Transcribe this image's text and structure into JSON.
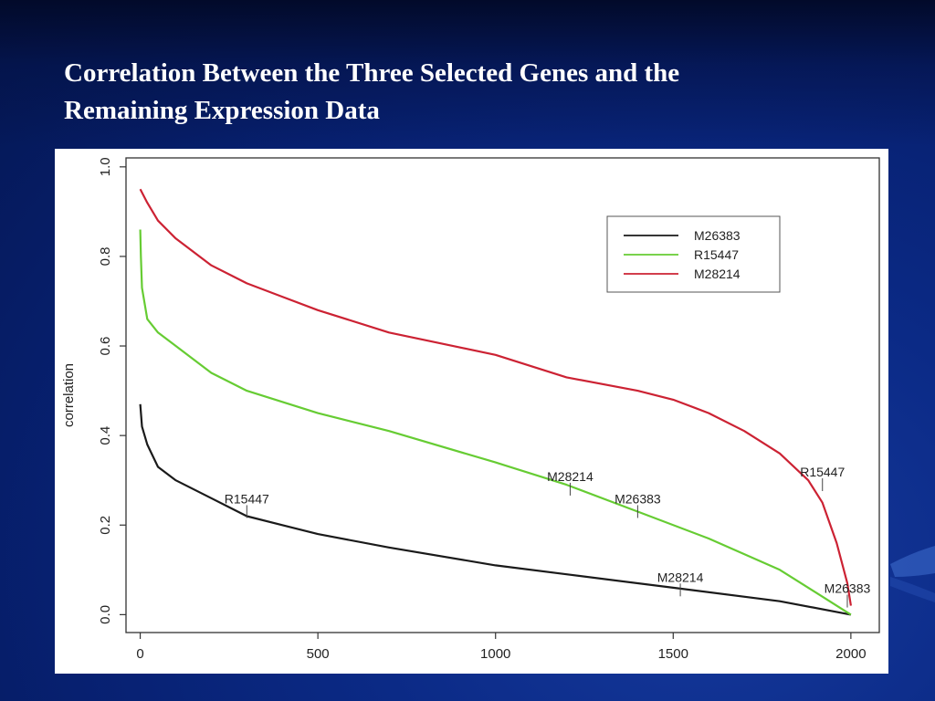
{
  "slide": {
    "title_line1": "Correlation Between the Three Selected Genes and the",
    "title_line2": "Remaining Expression Data"
  },
  "chart_data": {
    "type": "line",
    "xlabel": "",
    "ylabel": "correlation",
    "xlim": [
      -40,
      2080
    ],
    "ylim": [
      -0.04,
      1.02
    ],
    "xticks": [
      0,
      500,
      1000,
      1500,
      2000
    ],
    "yticks": [
      0.0,
      0.2,
      0.4,
      0.6,
      0.8,
      1.0
    ],
    "ytick_labels": [
      "0.0",
      "0.2",
      "0.4",
      "0.6",
      "0.8",
      "1.0"
    ],
    "grid": false,
    "legend_position": "top-right",
    "series": [
      {
        "name": "M26383",
        "color": "#1a1a1a",
        "x": [
          0,
          5,
          20,
          50,
          100,
          200,
          300,
          400,
          500,
          700,
          1000,
          1200,
          1500,
          1800,
          2000
        ],
        "y": [
          0.47,
          0.42,
          0.38,
          0.33,
          0.3,
          0.26,
          0.22,
          0.2,
          0.18,
          0.15,
          0.11,
          0.09,
          0.06,
          0.03,
          0.0
        ]
      },
      {
        "name": "R15447",
        "color": "#66cc33",
        "x": [
          0,
          2,
          5,
          20,
          50,
          100,
          200,
          300,
          500,
          700,
          1000,
          1200,
          1400,
          1600,
          1800,
          1900,
          2000
        ],
        "y": [
          0.86,
          0.8,
          0.73,
          0.66,
          0.63,
          0.6,
          0.54,
          0.5,
          0.45,
          0.41,
          0.34,
          0.29,
          0.23,
          0.17,
          0.1,
          0.05,
          0.0
        ]
      },
      {
        "name": "M28214",
        "color": "#cc2233",
        "x": [
          0,
          20,
          50,
          100,
          200,
          300,
          400,
          500,
          700,
          1000,
          1200,
          1400,
          1500,
          1600,
          1700,
          1800,
          1880,
          1920,
          1960,
          1990,
          2000
        ],
        "y": [
          0.95,
          0.92,
          0.88,
          0.84,
          0.78,
          0.74,
          0.71,
          0.68,
          0.63,
          0.58,
          0.53,
          0.5,
          0.48,
          0.45,
          0.41,
          0.36,
          0.3,
          0.25,
          0.16,
          0.07,
          0.02
        ]
      }
    ],
    "annotations": [
      {
        "text": "R15447",
        "x": 300,
        "y": 0.22
      },
      {
        "text": "M28214",
        "x": 1210,
        "y": 0.27
      },
      {
        "text": "M26383",
        "x": 1400,
        "y": 0.22
      },
      {
        "text": "M28214",
        "x": 1520,
        "y": 0.045
      },
      {
        "text": "R15447",
        "x": 1920,
        "y": 0.28
      },
      {
        "text": "M26383",
        "x": 1990,
        "y": 0.02
      }
    ]
  }
}
